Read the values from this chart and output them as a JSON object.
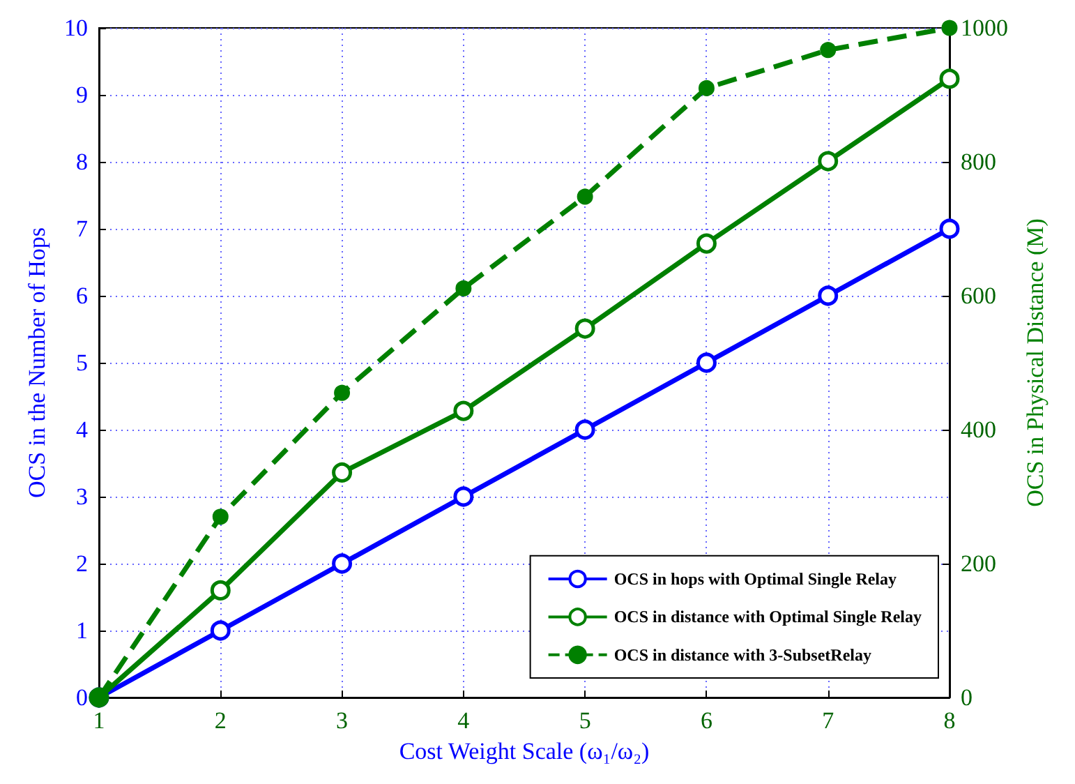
{
  "chart_data": {
    "type": "line",
    "xlabel": "Cost Weight Scale (ω₁/ω₂)",
    "ylabel": "OCS in the Number of Hops",
    "y2label": "OCS in Physical Distance (M)",
    "x": [
      1,
      2,
      3,
      4,
      5,
      6,
      7,
      8
    ],
    "series": [
      {
        "name": "OCS in hops with Optimal Single Relay",
        "color": "#0000ff",
        "values": [
          0,
          1,
          2,
          3,
          4,
          5,
          6,
          7
        ],
        "marker": "circle",
        "line_style": "solid"
      },
      {
        "name": "OCS in distance with Optimal Single Relay",
        "color": "#008000",
        "values": [
          0,
          160,
          336,
          428,
          551,
          678,
          801,
          924
        ],
        "axis": "y2",
        "marker": "circle",
        "line_style": "solid"
      },
      {
        "name": "OCS in distance with 3-SubsetRelay",
        "color": "#008000",
        "values": [
          0,
          270,
          455,
          611,
          748,
          910,
          967,
          1000
        ],
        "axis": "y2",
        "marker": "circle",
        "line_style": "dashed"
      }
    ],
    "xlim": [
      1,
      8
    ],
    "xticks": [
      1,
      2,
      3,
      4,
      5,
      6,
      7,
      8
    ],
    "ylim": [
      0,
      10
    ],
    "yticks": [
      0,
      1,
      2,
      3,
      4,
      5,
      6,
      7,
      8,
      9,
      10
    ],
    "y2lim": [
      0,
      1000
    ],
    "y2ticks": [
      0,
      200,
      400,
      600,
      800,
      1000
    ],
    "grid": true,
    "legend": "bottom right"
  }
}
